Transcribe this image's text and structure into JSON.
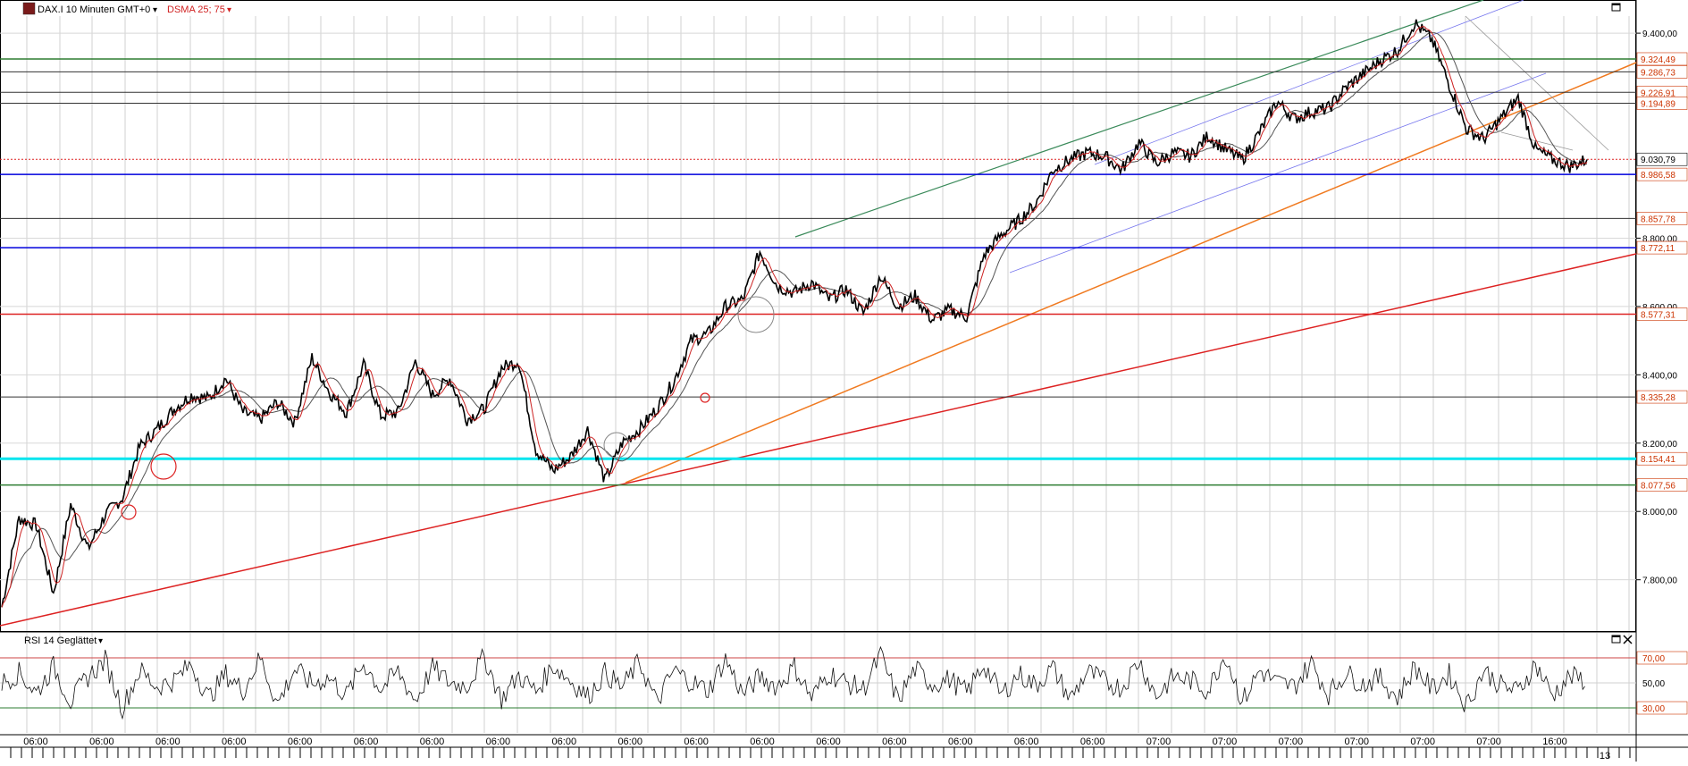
{
  "header": {
    "instrument_label": "DAX.I 10 Minuten GMT+0",
    "indicator_label": "DSMA 25; 75",
    "dropdown_glyph": "▾",
    "logo_icon": "chart-logo-icon",
    "maximize_icon": "maximize-icon"
  },
  "rsi_panel": {
    "title": "RSI 14 Geglättet",
    "levels": [
      "70,00",
      "50,00",
      "30,00"
    ],
    "icons": [
      "maximize-icon",
      "close-icon"
    ]
  },
  "colors": {
    "price_line": "#000000",
    "sma_fast": "#cc2222",
    "sma_slow": "#555555",
    "green_level": "#2e7d32",
    "blue_level": "#0000dd",
    "cyan_level": "#00e5ee",
    "red_level": "#dd2222",
    "orange_trend": "#f07a20",
    "red_trend": "#dd2222",
    "green_trend": "#3a8a5a",
    "channel": "#7777ee",
    "label_text": "#cc3300"
  },
  "chart_data": [
    {
      "type": "line",
      "title": "",
      "series": [
        {
          "name": "DAX.I",
          "values": [
            7720,
            7980,
            7960,
            7760,
            8020,
            7890,
            7990,
            8040,
            8190,
            8240,
            8300,
            8340,
            8330,
            8390,
            8290,
            8270,
            8320,
            8260,
            8450,
            8350,
            8290,
            8430,
            8280,
            8290,
            8440,
            8340,
            8390,
            8270,
            8300,
            8420,
            8440,
            8180,
            8120,
            8160,
            8240,
            8090,
            8200,
            8240,
            8300,
            8380,
            8500,
            8520,
            8600,
            8620,
            8760,
            8660,
            8640,
            8670,
            8620,
            8650,
            8580,
            8690,
            8600,
            8630,
            8560,
            8590,
            8570,
            8750,
            8810,
            8850,
            8900,
            9000,
            9030,
            9050,
            9040,
            9000,
            9080,
            9020,
            9050,
            9040,
            9100,
            9060,
            9030,
            9110,
            9200,
            9150,
            9170,
            9180,
            9240,
            9280,
            9320,
            9350,
            9430,
            9380,
            9250,
            9120,
            9090,
            9150,
            9210,
            9060,
            9030,
            9010,
            9030
          ]
        }
      ],
      "xlabel": "",
      "ylabel": "",
      "x_tick_labels": [
        "06:00",
        "06:00",
        "06:00",
        "06:00",
        "06:00",
        "06:00",
        "06:00",
        "06:00",
        "06:00",
        "06:00",
        "06:00",
        "06:00",
        "06:00",
        "06:00",
        "06:00",
        "06:00",
        "06:00",
        "07:00",
        "07:00",
        "07:00",
        "07:00",
        "07:00",
        "07:00",
        "16:00"
      ],
      "x_corner_label": "13",
      "y_tick_labels": [
        "9.400,00",
        "8.800,00",
        "8.600,00",
        "8.400,00",
        "8.200,00",
        "8.000,00",
        "7.800,00"
      ],
      "y_ticks": [
        9400,
        8800,
        8600,
        8400,
        8200,
        8000,
        7800
      ],
      "ylim": [
        7650,
        9450
      ],
      "grid": true,
      "horizontal_levels": [
        {
          "value": 9324.49,
          "label": "9.324,49",
          "kind": "green"
        },
        {
          "value": 9286.73,
          "label": "9.286,73",
          "kind": "black"
        },
        {
          "value": 9226.91,
          "label": "9.226,91",
          "kind": "black"
        },
        {
          "value": 9194.89,
          "label": "9.194,89",
          "kind": "black"
        },
        {
          "value": 9030.79,
          "label": "9.030,79",
          "kind": "current"
        },
        {
          "value": 8986.58,
          "label": "8.986,58",
          "kind": "blue"
        },
        {
          "value": 8857.78,
          "label": "8.857,78",
          "kind": "black"
        },
        {
          "value": 8772.11,
          "label": "8.772,11",
          "kind": "blue"
        },
        {
          "value": 8577.31,
          "label": "8.577,31",
          "kind": "red"
        },
        {
          "value": 8335.28,
          "label": "8.335,28",
          "kind": "black"
        },
        {
          "value": 8154.41,
          "label": "8.154,41",
          "kind": "cyan"
        },
        {
          "value": 8077.56,
          "label": "8.077,56",
          "kind": "green"
        }
      ]
    },
    {
      "type": "line",
      "title": "RSI 14 Geglättet",
      "series": [
        {
          "name": "RSI 14",
          "values": [
            50,
            58,
            42,
            63,
            35,
            55,
            68,
            30,
            60,
            47,
            52,
            65,
            38,
            57,
            44,
            70,
            33,
            61,
            49,
            54,
            40,
            66,
            45,
            59,
            36,
            62,
            50,
            48,
            71,
            37,
            56,
            43,
            64,
            52,
            39,
            58,
            46,
            67,
            34,
            60,
            51,
            44,
            69,
            41,
            55,
            47,
            63,
            38,
            58,
            50,
            45,
            72,
            36,
            61,
            49,
            53,
            42,
            65,
            40,
            57,
            48,
            62,
            37,
            59,
            51,
            46,
            68,
            39,
            55,
            52,
            44,
            73,
            35,
            60,
            50,
            47,
            66,
            41,
            58,
            49,
            54,
            38,
            63,
            45,
            57,
            32,
            60,
            48,
            43,
            65,
            40,
            55,
            52
          ]
        }
      ],
      "y_tick_labels": [
        "70,00",
        "50,00",
        "30,00"
      ],
      "y_ticks": [
        70,
        50,
        30
      ],
      "ylim": [
        10,
        90
      ],
      "grid": true
    }
  ]
}
